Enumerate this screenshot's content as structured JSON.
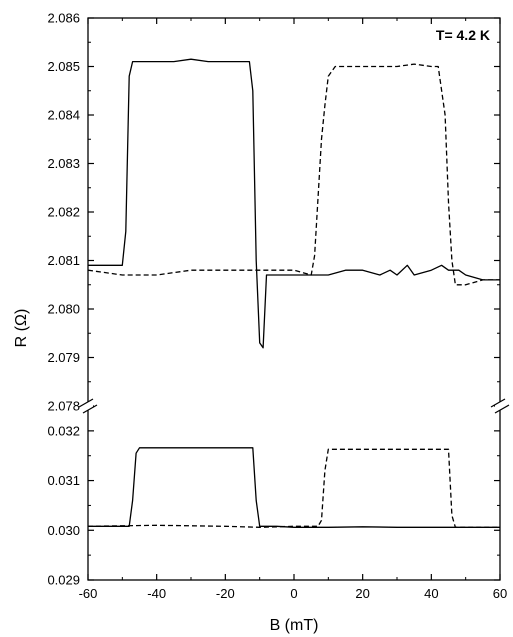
{
  "chart_data": {
    "type": "line",
    "xlabel": "B (mT)",
    "ylabel": "R (Ω)",
    "annotation": "T= 4.2 K",
    "x_range": [
      -60,
      60
    ],
    "x_ticks": [
      "-60",
      "-40",
      "-20",
      "0",
      "20",
      "40",
      "60"
    ],
    "axis_break": true,
    "grid": false,
    "legend": "none",
    "panels": [
      {
        "name": "upper",
        "y_range": [
          2.078,
          2.086
        ],
        "y_ticks": [
          "2.078",
          "2.079",
          "2.080",
          "2.081",
          "2.082",
          "2.083",
          "2.084",
          "2.085",
          "2.086"
        ],
        "series": [
          {
            "style": "solid",
            "x": [
              -60,
              -50,
              -49,
              -48,
              -47,
              -46,
              -40,
              -35,
              -30,
              -25,
              -20,
              -15,
              -13,
              -12,
              -11,
              -10,
              -9,
              -8,
              -5,
              0,
              5,
              10,
              15,
              20,
              25,
              28,
              30,
              33,
              35,
              40,
              43,
              45,
              48,
              50,
              55,
              60
            ],
            "y": [
              2.0809,
              2.0809,
              2.0816,
              2.0848,
              2.0851,
              2.0851,
              2.0851,
              2.0851,
              2.08515,
              2.0851,
              2.0851,
              2.0851,
              2.0851,
              2.0845,
              2.081,
              2.0793,
              2.0792,
              2.0807,
              2.0807,
              2.0807,
              2.0807,
              2.0807,
              2.0808,
              2.0808,
              2.0807,
              2.0808,
              2.0807,
              2.0809,
              2.0807,
              2.0808,
              2.0809,
              2.0808,
              2.0808,
              2.0807,
              2.0806,
              2.0806
            ]
          },
          {
            "style": "dashed",
            "x": [
              -60,
              -50,
              -40,
              -30,
              -20,
              -10,
              0,
              5,
              6,
              8,
              9,
              10,
              12,
              15,
              20,
              30,
              35,
              40,
              42,
              44,
              45,
              46,
              47,
              50,
              55,
              60
            ],
            "y": [
              2.0808,
              2.0807,
              2.0807,
              2.0808,
              2.0808,
              2.0808,
              2.0808,
              2.0807,
              2.0811,
              2.0835,
              2.0842,
              2.0848,
              2.085,
              2.085,
              2.085,
              2.085,
              2.08505,
              2.085,
              2.085,
              2.084,
              2.0822,
              2.081,
              2.0805,
              2.0805,
              2.0806,
              2.0806
            ]
          }
        ]
      },
      {
        "name": "lower",
        "y_range": [
          0.029,
          0.0325
        ],
        "y_ticks": [
          "0.029",
          "0.030",
          "0.031",
          "0.032"
        ],
        "series": [
          {
            "style": "solid",
            "x": [
              -60,
              -48,
              -47,
              -46,
              -45,
              -40,
              -30,
              -20,
              -12,
              -11,
              -10,
              -5,
              0,
              10,
              20,
              30,
              40,
              50,
              60
            ],
            "y": [
              0.03008,
              0.03008,
              0.0306,
              0.03155,
              0.03166,
              0.03166,
              0.03166,
              0.03166,
              0.03166,
              0.0306,
              0.03008,
              0.03008,
              0.03006,
              0.03006,
              0.03007,
              0.03006,
              0.03006,
              0.03006,
              0.03006
            ]
          },
          {
            "style": "dashed",
            "x": [
              -60,
              -40,
              -20,
              -10,
              0,
              7,
              8,
              9,
              10,
              20,
              30,
              40,
              45,
              46,
              47,
              50,
              60
            ],
            "y": [
              0.03008,
              0.0301,
              0.03008,
              0.03006,
              0.03008,
              0.03008,
              0.0302,
              0.0312,
              0.03163,
              0.03163,
              0.03163,
              0.03163,
              0.03163,
              0.0303,
              0.03006,
              0.03006,
              0.03006
            ]
          }
        ]
      }
    ]
  }
}
